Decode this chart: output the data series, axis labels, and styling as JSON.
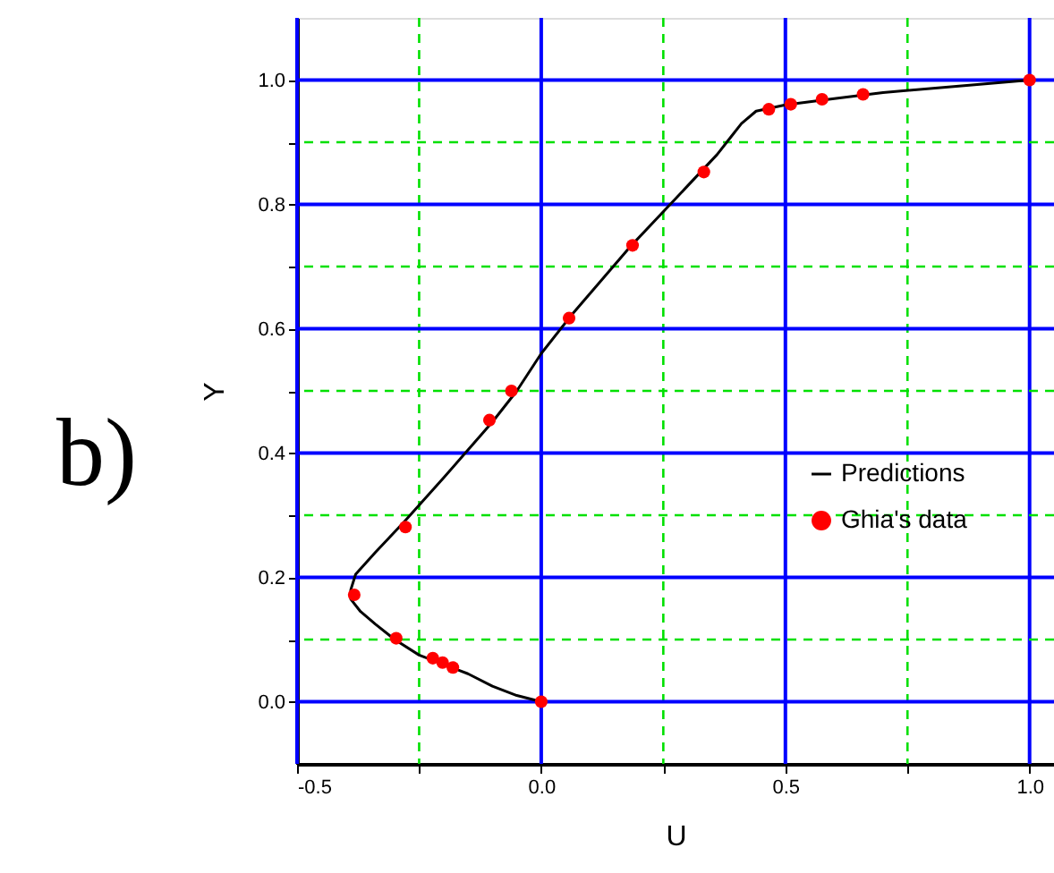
{
  "chart_data": {
    "type": "line",
    "xlabel": "U",
    "ylabel": "Y",
    "annotations": [
      "b)"
    ],
    "xlim": [
      -0.5,
      1.05
    ],
    "ylim": [
      -0.1,
      1.1
    ],
    "xticks": [
      {
        "value": -0.5,
        "label": "-0.5"
      },
      {
        "value": -0.25,
        "label": null
      },
      {
        "value": 0,
        "label": "0.0"
      },
      {
        "value": 0.25,
        "label": null
      },
      {
        "value": 0.5,
        "label": "0.5"
      },
      {
        "value": 0.75,
        "label": null
      },
      {
        "value": 1.0,
        "label": "1.0"
      }
    ],
    "yticks": [
      {
        "value": 0,
        "label": "0.0"
      },
      {
        "value": 0.1,
        "label": null
      },
      {
        "value": 0.2,
        "label": "0.2"
      },
      {
        "value": 0.3,
        "label": null
      },
      {
        "value": 0.4,
        "label": "0.4"
      },
      {
        "value": 0.5,
        "label": null
      },
      {
        "value": 0.6,
        "label": "0.6"
      },
      {
        "value": 0.7,
        "label": null
      },
      {
        "value": 0.8,
        "label": "0.8"
      },
      {
        "value": 0.9,
        "label": null
      },
      {
        "value": 1.0,
        "label": "1.0"
      }
    ],
    "grid": true,
    "legend": "right",
    "series": [
      {
        "name": "Predictions",
        "color": "#000000",
        "marker": "none",
        "line_style": "solid",
        "x": [
          0,
          -0.05,
          -0.1,
          -0.15,
          -0.25,
          -0.3,
          -0.34,
          -0.37,
          -0.39,
          -0.39,
          -0.38,
          -0.34,
          -0.28,
          -0.2,
          -0.1,
          -0.05,
          0,
          0.06,
          0.18,
          0.3,
          0.36,
          0.39,
          0.41,
          0.44,
          0.5,
          0.6,
          0.7,
          0.85,
          1.0
        ],
        "values": [
          0,
          0.01,
          0.025,
          0.045,
          0.075,
          0.1,
          0.125,
          0.145,
          0.165,
          0.18,
          0.205,
          0.24,
          0.29,
          0.36,
          0.45,
          0.5,
          0.56,
          0.62,
          0.73,
          0.83,
          0.88,
          0.91,
          0.93,
          0.95,
          0.96,
          0.97,
          0.98,
          0.99,
          1.0
        ]
      },
      {
        "name": "Ghia's data",
        "type": "scatter",
        "color": "#ff0000",
        "marker": "circle",
        "x": [
          0,
          -0.181,
          -0.202,
          -0.222,
          -0.297,
          -0.383,
          -0.278,
          -0.106,
          -0.061,
          0.057,
          0.187,
          0.333,
          0.466,
          0.511,
          0.575,
          0.659,
          1.0
        ],
        "values": [
          0,
          0.055,
          0.063,
          0.07,
          0.102,
          0.172,
          0.281,
          0.453,
          0.5,
          0.617,
          0.734,
          0.852,
          0.953,
          0.961,
          0.969,
          0.977,
          1.0
        ]
      }
    ]
  }
}
